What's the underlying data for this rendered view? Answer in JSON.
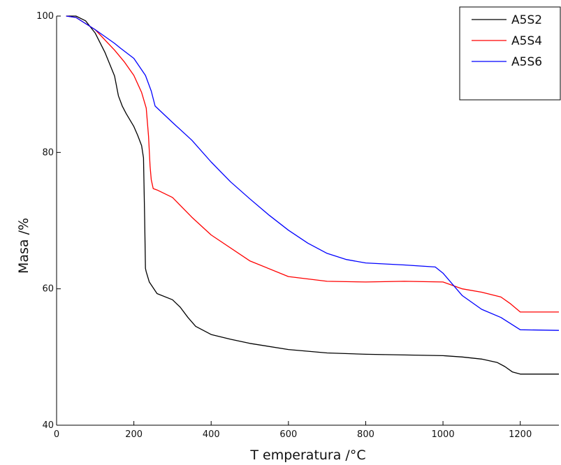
{
  "chart_data": {
    "type": "line",
    "title": "",
    "xlabel": "T emperatura /°C",
    "ylabel": "Masa /%",
    "xlim": [
      0,
      1300
    ],
    "ylim": [
      40,
      100
    ],
    "x_ticks": [
      0,
      200,
      400,
      600,
      800,
      1000,
      1200
    ],
    "x_tick_labels": [
      "0",
      "200",
      "400",
      "600",
      "800",
      "1000",
      "1200"
    ],
    "y_ticks": [
      40,
      60,
      80,
      100
    ],
    "y_tick_labels": [
      "40",
      "60",
      "80",
      "100"
    ],
    "grid": false,
    "legend": "top-right",
    "series": [
      {
        "name": "A5S2",
        "color": "#000000",
        "x": [
          25,
          50,
          75,
          100,
          125,
          150,
          160,
          170,
          180,
          200,
          210,
          220,
          225,
          228,
          230,
          232,
          240,
          260,
          300,
          320,
          340,
          360,
          400,
          450,
          500,
          600,
          700,
          800,
          900,
          1000,
          1050,
          1100,
          1140,
          1160,
          1180,
          1200,
          1300
        ],
        "y": [
          100,
          100,
          99.3,
          97.5,
          94.7,
          91.2,
          88.3,
          86.8,
          85.7,
          83.8,
          82.5,
          81,
          79.2,
          70,
          63,
          62.5,
          61,
          59.3,
          58.4,
          57.3,
          55.8,
          54.5,
          53.3,
          52.6,
          52,
          51.1,
          50.6,
          50.4,
          50.3,
          50.2,
          50,
          49.7,
          49.2,
          48.6,
          47.8,
          47.5,
          47.5
        ]
      },
      {
        "name": "A5S4",
        "color": "#ff0000",
        "x": [
          25,
          50,
          100,
          150,
          175,
          200,
          220,
          232,
          238,
          242,
          245,
          250,
          260,
          300,
          350,
          400,
          500,
          600,
          700,
          800,
          900,
          1000,
          1050,
          1100,
          1150,
          1175,
          1200,
          1300
        ],
        "y": [
          100,
          99.8,
          98,
          95,
          93.3,
          91.3,
          88.8,
          86.5,
          82.4,
          78,
          76,
          74.7,
          74.5,
          73.4,
          70.5,
          67.9,
          64.1,
          61.8,
          61.1,
          61,
          61.1,
          61,
          60,
          59.5,
          58.8,
          57.8,
          56.6,
          56.6
        ]
      },
      {
        "name": "A5S6",
        "color": "#0000ff",
        "x": [
          25,
          50,
          100,
          150,
          165,
          200,
          230,
          245,
          255,
          300,
          350,
          400,
          450,
          500,
          550,
          600,
          650,
          700,
          750,
          800,
          900,
          980,
          1000,
          1050,
          1100,
          1150,
          1200,
          1300
        ],
        "y": [
          100,
          99.8,
          98,
          96,
          95.3,
          93.8,
          91.3,
          89,
          86.8,
          84.4,
          81.8,
          78.6,
          75.7,
          73.2,
          70.8,
          68.6,
          66.7,
          65.2,
          64.3,
          63.8,
          63.5,
          63.2,
          62.3,
          59,
          57,
          55.8,
          54,
          53.9
        ]
      }
    ]
  }
}
